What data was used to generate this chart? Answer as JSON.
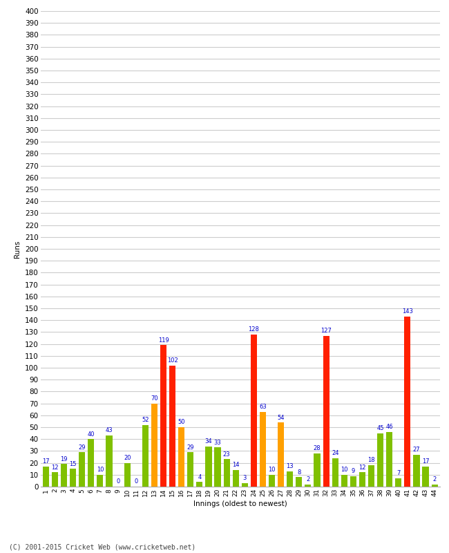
{
  "xlabel": "Innings (oldest to newest)",
  "ylabel": "Runs",
  "footer": "(C) 2001-2015 Cricket Web (www.cricketweb.net)",
  "ylim": [
    0,
    400
  ],
  "yticks": [
    0,
    10,
    20,
    30,
    40,
    50,
    60,
    70,
    80,
    90,
    100,
    110,
    120,
    130,
    140,
    150,
    160,
    170,
    180,
    190,
    200,
    210,
    220,
    230,
    240,
    250,
    260,
    270,
    280,
    290,
    300,
    310,
    320,
    330,
    340,
    350,
    360,
    370,
    380,
    390,
    400
  ],
  "innings": [
    1,
    2,
    3,
    4,
    5,
    6,
    7,
    8,
    9,
    10,
    11,
    12,
    13,
    14,
    15,
    16,
    17,
    18,
    19,
    20,
    21,
    22,
    23,
    24,
    25,
    26,
    27,
    28,
    29,
    30,
    31,
    32,
    33,
    34,
    35,
    36,
    37,
    38,
    39,
    40,
    41,
    42,
    43,
    44
  ],
  "values": [
    17,
    12,
    19,
    15,
    29,
    40,
    10,
    43,
    0,
    20,
    0,
    52,
    70,
    119,
    102,
    50,
    29,
    4,
    34,
    33,
    23,
    14,
    3,
    128,
    63,
    10,
    54,
    13,
    8,
    2,
    28,
    127,
    24,
    10,
    9,
    12,
    18,
    45,
    46,
    7,
    143,
    27,
    17,
    2
  ],
  "colors": [
    "#80c000",
    "#80c000",
    "#80c000",
    "#80c000",
    "#80c000",
    "#80c000",
    "#80c000",
    "#80c000",
    "#80c000",
    "#80c000",
    "#80c000",
    "#80c000",
    "#ffa000",
    "#ff2000",
    "#ff2000",
    "#ffa000",
    "#80c000",
    "#80c000",
    "#80c000",
    "#80c000",
    "#80c000",
    "#80c000",
    "#80c000",
    "#ff2000",
    "#ffa000",
    "#80c000",
    "#ffa000",
    "#80c000",
    "#80c000",
    "#80c000",
    "#80c000",
    "#ff2000",
    "#80c000",
    "#80c000",
    "#80c000",
    "#80c000",
    "#80c000",
    "#80c000",
    "#80c000",
    "#80c000",
    "#ff2000",
    "#80c000",
    "#80c000",
    "#80c000"
  ],
  "label_color": "#0000cc",
  "bar_width": 0.7,
  "bg_color": "#ffffff",
  "grid_color": "#cccccc",
  "label_fontsize": 6.0,
  "axis_fontsize": 7.5,
  "title_fontsize": 10
}
